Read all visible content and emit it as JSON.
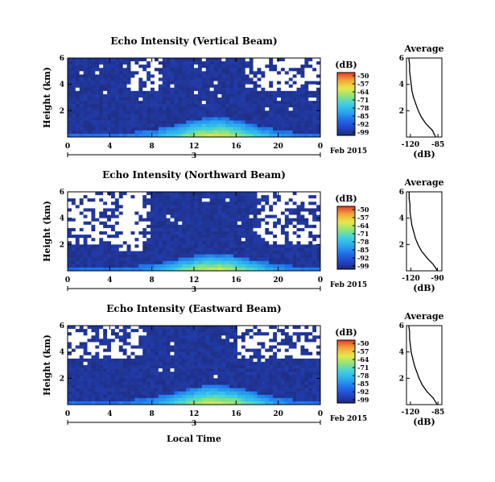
{
  "colors": {
    "background_noise": "#2a3470",
    "colormap": [
      "#1e2a78",
      "#2246c8",
      "#1f6fe8",
      "#2aa8f0",
      "#3fd0e0",
      "#8ee37a",
      "#e8e84a",
      "#f2a63a",
      "#e83a2a"
    ],
    "dropout": "#ffffff"
  },
  "colorbar": {
    "unit_label": "(dB)",
    "ticks": [
      "-50",
      "-57",
      "-64",
      "-71",
      "-78",
      "-85",
      "-92",
      "-99"
    ]
  },
  "shared": {
    "date_label": "Feb 2015",
    "day_label": "3",
    "xlabel": "Local Time",
    "ylabel": "Height (km)",
    "avg_title": "Average",
    "avg_xlabel": "(dB)"
  },
  "chart_data": [
    {
      "type": "heatmap",
      "title": "Echo Intensity (Vertical Beam)",
      "x_ticks": [
        "0",
        "4",
        "8",
        "12",
        "16",
        "20",
        "0"
      ],
      "xlim": [
        0,
        24
      ],
      "y_ticks": [
        "2",
        "4",
        "6"
      ],
      "ylim": [
        0,
        6
      ],
      "color_range_db": [
        -99,
        -50
      ],
      "features": {
        "boundary_layer_peak_time": 14,
        "boundary_layer_peak_height_km": 1.2,
        "white_dropout_regions": [
          [
            6,
            9,
            3.5,
            6
          ],
          [
            17,
            24,
            3.5,
            6
          ]
        ]
      }
    },
    {
      "type": "line",
      "title": "Average",
      "xlabel": "(dB)",
      "x_ticks": [
        "-120",
        "-85"
      ],
      "xlim": [
        -125,
        -80
      ],
      "y_ticks": [
        "2",
        "4",
        "6"
      ],
      "ylim": [
        0,
        6
      ],
      "profile": {
        "height_km": [
          0,
          0.5,
          1,
          1.5,
          2,
          2.5,
          3,
          3.5,
          4,
          4.5,
          5,
          5.5,
          6
        ],
        "db": [
          -88,
          -92,
          -100,
          -106,
          -110,
          -113,
          -116,
          -118,
          -119,
          -120,
          -121,
          -121,
          -122
        ]
      }
    },
    {
      "type": "heatmap",
      "title": "Echo Intensity (Northward Beam)",
      "x_ticks": [
        "0",
        "4",
        "8",
        "12",
        "16",
        "20",
        "0"
      ],
      "xlim": [
        0,
        24
      ],
      "y_ticks": [
        "2",
        "4",
        "6"
      ],
      "ylim": [
        0,
        6
      ],
      "color_range_db": [
        -99,
        -50
      ],
      "features": {
        "boundary_layer_peak_time": 14,
        "boundary_layer_peak_height_km": 1.0,
        "white_dropout_regions": [
          [
            0,
            8,
            2,
            6
          ],
          [
            18,
            24,
            2,
            6
          ],
          [
            5,
            7,
            1.5,
            6
          ]
        ]
      }
    },
    {
      "type": "line",
      "title": "Average",
      "xlabel": "(dB)",
      "x_ticks": [
        "-120",
        "-90"
      ],
      "xlim": [
        -125,
        -85
      ],
      "y_ticks": [
        "2",
        "4",
        "6"
      ],
      "ylim": [
        0,
        6
      ],
      "profile": {
        "height_km": [
          0,
          0.5,
          1,
          1.5,
          2,
          2.5,
          3,
          3.5,
          4,
          4.5,
          5,
          5.5,
          6
        ],
        "db": [
          -90,
          -95,
          -102,
          -108,
          -112,
          -115,
          -117,
          -119,
          -120,
          -121,
          -121,
          -122,
          -122
        ]
      }
    },
    {
      "type": "heatmap",
      "title": "Echo Intensity (Eastward Beam)",
      "x_ticks": [
        "0",
        "4",
        "8",
        "12",
        "16",
        "20",
        "0"
      ],
      "xlim": [
        0,
        24
      ],
      "y_ticks": [
        "2",
        "4",
        "6"
      ],
      "ylim": [
        0,
        6
      ],
      "color_range_db": [
        -99,
        -50
      ],
      "features": {
        "boundary_layer_peak_time": 14,
        "boundary_layer_peak_height_km": 1.2,
        "white_dropout_regions": [
          [
            0,
            7,
            3.5,
            6
          ],
          [
            16,
            24,
            3.5,
            6
          ]
        ]
      }
    },
    {
      "type": "line",
      "title": "Average",
      "xlabel": "(dB)",
      "x_ticks": [
        "-120",
        "-85"
      ],
      "xlim": [
        -125,
        -80
      ],
      "y_ticks": [
        "2",
        "4",
        "6"
      ],
      "ylim": [
        0,
        6
      ],
      "profile": {
        "height_km": [
          0,
          0.5,
          1,
          1.5,
          2,
          2.5,
          3,
          3.5,
          4,
          4.5,
          5,
          5.5,
          6
        ],
        "db": [
          -86,
          -91,
          -99,
          -105,
          -109,
          -112,
          -115,
          -117,
          -119,
          -120,
          -121,
          -121,
          -122
        ]
      }
    }
  ]
}
